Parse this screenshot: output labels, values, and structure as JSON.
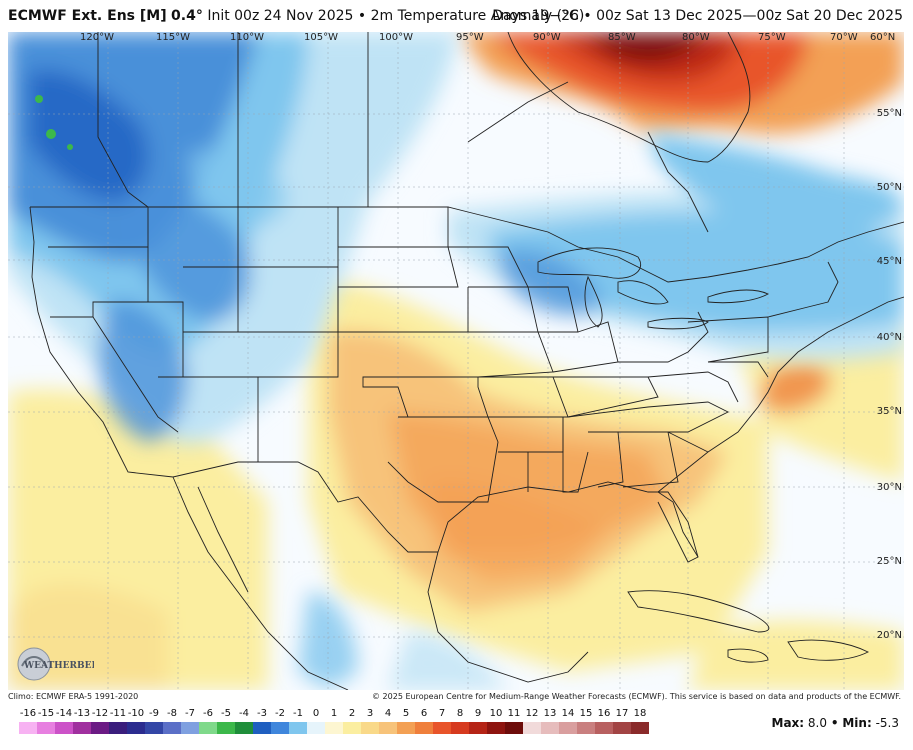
{
  "header": {
    "model": "ECMWF Ext. Ens [M]",
    "resolution": "0.4°",
    "init": "Init 00z 24 Nov 2025",
    "sep": "•",
    "variable": "2m Temperature Anomaly (°C)",
    "valid": "Days 19−26 • 00z Sat 13 Dec 2025—00z Sat 20 Dec 2025"
  },
  "map": {
    "lon_labels": [
      "120°W",
      "115°W",
      "110°W",
      "105°W",
      "100°W",
      "95°W",
      "90°W",
      "85°W",
      "80°W",
      "75°W",
      "70°W",
      "60°N"
    ],
    "lat_labels": [
      "55°N",
      "50°N",
      "45°N",
      "40°N",
      "35°N",
      "30°N",
      "25°N",
      "20°N"
    ],
    "colors": {
      "ocean": "#f7fbff",
      "light_cold": "#bfe3f5",
      "cold": "#7fc6ee",
      "colder": "#4a90d9",
      "coldest": "#1f5fc0",
      "green": "#3cb84a",
      "warm_light": "#fbeea0",
      "warm": "#f7c37a",
      "warmer": "#f3a054",
      "hot": "#e8542a",
      "hotter": "#c02a16",
      "hottest": "#7a0d0a"
    }
  },
  "logo_text": "WEATHERBELL",
  "footer": {
    "climo": "Climo: ECMWF ERA-5 1991-2020",
    "copyright": "© 2025 European Centre for Medium-Range Weather Forecasts (ECMWF). This service is based on data and products of the ECMWF."
  },
  "colorbar": {
    "ticks": [
      "-16",
      "-15",
      "-14",
      "-13",
      "-12",
      "-11",
      "-10",
      "-9",
      "-8",
      "-7",
      "-6",
      "-5",
      "-4",
      "-3",
      "-2",
      "-1",
      "0",
      "1",
      "2",
      "3",
      "4",
      "5",
      "6",
      "7",
      "8",
      "9",
      "10",
      "11",
      "12",
      "13",
      "14",
      "15",
      "16",
      "17",
      "18"
    ],
    "colors": [
      "#f7b2f2",
      "#e77fe0",
      "#cc52c8",
      "#a0309f",
      "#6b1a84",
      "#3a1d7c",
      "#2b2c8f",
      "#3346a6",
      "#5b6fc7",
      "#7fa0e0",
      "#7fd98a",
      "#3cb84a",
      "#1f8e3a",
      "#1f5fc0",
      "#3f86dc",
      "#7fc6ee",
      "#e6f4fb",
      "#fdf6d1",
      "#fbeea0",
      "#f9d989",
      "#f7c37a",
      "#f3a054",
      "#ef7f3c",
      "#e8542a",
      "#d63a1f",
      "#b52416",
      "#8e140f",
      "#6d0c0a",
      "#f1dada",
      "#e6bcbc",
      "#d99e9e",
      "#c97f7f",
      "#b86060",
      "#a24444",
      "#8a2a2a"
    ]
  },
  "stats": {
    "max_label": "Max:",
    "max": "8.0",
    "sep": "•",
    "min_label": "Min:",
    "min": "-5.3"
  }
}
